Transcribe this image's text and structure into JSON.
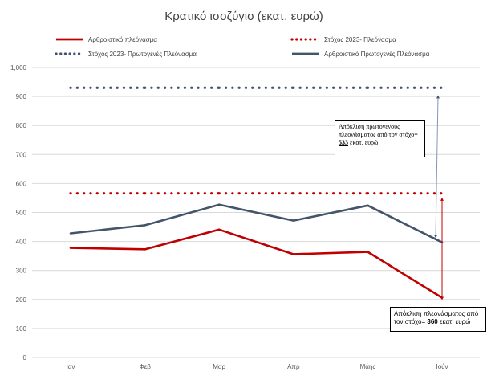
{
  "chart_data": {
    "type": "line",
    "title": "Κρατικό ισοζύγιο (εκατ. ευρώ)",
    "categories": [
      "Ιαν",
      "Φεβ",
      "Μαρ",
      "Απρ",
      "Μάης",
      "Ιούν"
    ],
    "ylim": [
      0,
      1000
    ],
    "yticks": [
      "0",
      "100",
      "200",
      "300",
      "400",
      "500",
      "600",
      "700",
      "800",
      "900",
      "1,000"
    ],
    "grid": true,
    "legend_position": "top",
    "series": [
      {
        "name": "Αρθροιστικό πλεόνασμα",
        "style": "solid",
        "color": "#C00000",
        "values": [
          378,
          373,
          441,
          356,
          364,
          206
        ]
      },
      {
        "name": "Στόχος 2023- Πλεόνασμα",
        "style": "dotted",
        "color": "#C00000",
        "values": [
          566,
          566,
          566,
          566,
          566,
          566
        ]
      },
      {
        "name": "Στόχος 2023- Πρωτογενές Πλεόνασμα",
        "style": "dotted",
        "color": "#44546A",
        "values": [
          930,
          930,
          930,
          930,
          930,
          930
        ]
      },
      {
        "name": "Αρθροιστικό Πρωτογενές Πλεόνασμα",
        "style": "solid",
        "color": "#44546A",
        "values": [
          428,
          456,
          527,
          472,
          524,
          397
        ]
      }
    ]
  },
  "annotations": {
    "primary_gap": {
      "before": "Απόκλιση πρωτογενούς πλεονάσματος από τον στόχο=",
      "value": "533",
      "after": " εκατ. ευρώ"
    },
    "surplus_gap": {
      "before": "Απόκλιση πλεονάσματος από τον στόχο=",
      "value": "360",
      "after": " εκατ. ευρώ"
    }
  }
}
